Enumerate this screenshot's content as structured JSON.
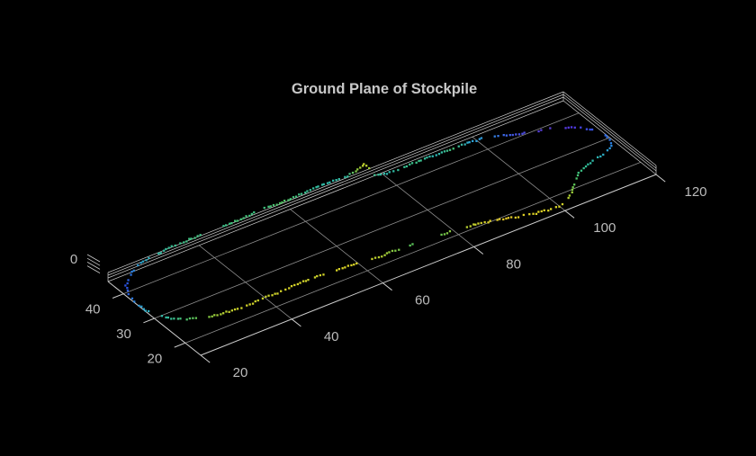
{
  "figure": {
    "background": "#000000",
    "axis_color": "#cdcdcd",
    "grid_color": "#8d8d8d",
    "tick_label_color": "#bcbcbc",
    "title_color": "#c8c8c8"
  },
  "chart_data": {
    "type": "scatter",
    "title": "Ground Plane of Stockpile",
    "subtype": "3d-ground-plane-boundary",
    "grid": true,
    "legend": "none",
    "xlim": [
      20,
      120
    ],
    "ylim": [
      15,
      45
    ],
    "zlim": [
      0,
      0
    ],
    "x_ticks": [
      20,
      40,
      60,
      80,
      100,
      120
    ],
    "y_ticks": [
      40,
      30,
      20
    ],
    "z_ticks": [
      0
    ],
    "x_grid": [
      40,
      60,
      80,
      100
    ],
    "y_grid": [
      20,
      30,
      40
    ],
    "marker": "point",
    "colormap": "viridis-like (color varies around boundary)",
    "boundary": [
      {
        "x": 21.8,
        "y": 41.8,
        "c": "#2b50e0"
      },
      {
        "x": 25.1,
        "y": 44.9,
        "c": "#2a78dc"
      },
      {
        "x": 28.7,
        "y": 46.7,
        "c": "#29a2c4"
      },
      {
        "x": 32.1,
        "y": 47.1,
        "c": "#2cb4a4"
      },
      {
        "x": 36.4,
        "y": 47.6,
        "c": "#38bd8c"
      },
      {
        "x": 40.8,
        "y": 47.7,
        "c": "#40c07c"
      },
      {
        "x": 45.6,
        "y": 47.8,
        "c": "#35bd96"
      },
      {
        "x": 50.2,
        "y": 47.6,
        "c": "#44c170"
      },
      {
        "x": 55.7,
        "y": 48.0,
        "c": "#3cbf85"
      },
      {
        "x": 60.1,
        "y": 47.7,
        "c": "#52c35f"
      },
      {
        "x": 65.6,
        "y": 48.1,
        "c": "#38bd92"
      },
      {
        "x": 70.4,
        "y": 48.2,
        "c": "#2fb9ab"
      },
      {
        "x": 74.4,
        "y": 47.8,
        "c": "#31bba0"
      },
      {
        "x": 76.8,
        "y": 48.3,
        "c": "#86c841"
      },
      {
        "x": 79.1,
        "y": 49.4,
        "c": "#c8d22b"
      },
      {
        "x": 79.2,
        "y": 47.5,
        "c": "#a3cc35"
      },
      {
        "x": 78.7,
        "y": 45.0,
        "c": "#3dbd8f"
      },
      {
        "x": 80.7,
        "y": 44.2,
        "c": "#2eb8b0"
      },
      {
        "x": 83.8,
        "y": 44.1,
        "c": "#35bd92"
      },
      {
        "x": 87.4,
        "y": 44.1,
        "c": "#3dbf86"
      },
      {
        "x": 91.3,
        "y": 44.1,
        "c": "#2fb6b6"
      },
      {
        "x": 95.1,
        "y": 43.9,
        "c": "#44c173"
      },
      {
        "x": 98.7,
        "y": 43.9,
        "c": "#2da5d2"
      },
      {
        "x": 101.9,
        "y": 43.3,
        "c": "#2d93dc"
      },
      {
        "x": 104.6,
        "y": 42.1,
        "c": "#3a6ae6"
      },
      {
        "x": 107.3,
        "y": 40.8,
        "c": "#4950e2"
      },
      {
        "x": 110.4,
        "y": 39.6,
        "c": "#5540da"
      },
      {
        "x": 113.7,
        "y": 38.6,
        "c": "#5b3bd6"
      },
      {
        "x": 116.5,
        "y": 36.9,
        "c": "#5338e2"
      },
      {
        "x": 118.5,
        "y": 34.7,
        "c": "#3f51ea"
      },
      {
        "x": 119.7,
        "y": 32.4,
        "c": "#2f63f0"
      },
      {
        "x": 119.8,
        "y": 30.1,
        "c": "#2b72ee"
      },
      {
        "x": 118.9,
        "y": 27.9,
        "c": "#2a86e2"
      },
      {
        "x": 116.9,
        "y": 26.4,
        "c": "#2ba4cc"
      },
      {
        "x": 114.4,
        "y": 25.7,
        "c": "#2db6b2"
      },
      {
        "x": 111.7,
        "y": 25.1,
        "c": "#30bc9c"
      },
      {
        "x": 109.0,
        "y": 23.8,
        "c": "#3fc07c"
      },
      {
        "x": 106.5,
        "y": 21.6,
        "c": "#55c45c"
      },
      {
        "x": 104.3,
        "y": 19.2,
        "c": "#96ca3a"
      },
      {
        "x": 102.1,
        "y": 17.5,
        "c": "#c6d12c"
      },
      {
        "x": 100.1,
        "y": 16.8,
        "c": "#d5d228"
      },
      {
        "x": 97.8,
        "y": 17.0,
        "c": "#d9d226"
      },
      {
        "x": 95.3,
        "y": 17.4,
        "c": "#dcd225"
      },
      {
        "x": 92.7,
        "y": 18.2,
        "c": "#decd26"
      },
      {
        "x": 89.9,
        "y": 19.2,
        "c": "#dfc42a"
      },
      {
        "x": 87.0,
        "y": 20.2,
        "c": "#ddd026"
      },
      {
        "x": 83.9,
        "y": 21.0,
        "c": "#c3d02e"
      },
      {
        "x": 80.7,
        "y": 21.5,
        "c": "#9ecb37"
      },
      {
        "x": 77.4,
        "y": 21.8,
        "c": "#6ac64e"
      },
      {
        "x": 74.0,
        "y": 22.1,
        "c": "#52c363"
      },
      {
        "x": 70.6,
        "y": 22.4,
        "c": "#5fc556"
      },
      {
        "x": 67.5,
        "y": 22.5,
        "c": "#84c843"
      },
      {
        "x": 64.7,
        "y": 22.4,
        "c": "#b2ce32"
      },
      {
        "x": 62.0,
        "y": 22.5,
        "c": "#ccd12a"
      },
      {
        "x": 59.5,
        "y": 22.9,
        "c": "#d7d227"
      },
      {
        "x": 56.8,
        "y": 23.5,
        "c": "#d9d226"
      },
      {
        "x": 53.8,
        "y": 23.8,
        "c": "#d4d128"
      },
      {
        "x": 51.2,
        "y": 23.9,
        "c": "#c9d02c"
      },
      {
        "x": 48.7,
        "y": 23.9,
        "c": "#cfd12a"
      },
      {
        "x": 45.9,
        "y": 23.8,
        "c": "#d6d227"
      },
      {
        "x": 42.6,
        "y": 23.6,
        "c": "#d0d129"
      },
      {
        "x": 39.5,
        "y": 23.7,
        "c": "#c4d02e"
      },
      {
        "x": 36.3,
        "y": 23.5,
        "c": "#d2d128"
      },
      {
        "x": 33.6,
        "y": 23.7,
        "c": "#c9d02b"
      },
      {
        "x": 31.1,
        "y": 24.0,
        "c": "#b4ce32"
      },
      {
        "x": 28.6,
        "y": 24.4,
        "c": "#8bc93e"
      },
      {
        "x": 26.4,
        "y": 25.3,
        "c": "#66c550"
      },
      {
        "x": 24.4,
        "y": 26.4,
        "c": "#4cc26e"
      },
      {
        "x": 22.7,
        "y": 28.0,
        "c": "#3abe91"
      },
      {
        "x": 21.4,
        "y": 30.1,
        "c": "#2fb9ad"
      },
      {
        "x": 20.3,
        "y": 32.7,
        "c": "#2baec0"
      },
      {
        "x": 20.1,
        "y": 35.8,
        "c": "#2a90d8"
      },
      {
        "x": 20.5,
        "y": 38.8,
        "c": "#2b68e4"
      }
    ]
  }
}
